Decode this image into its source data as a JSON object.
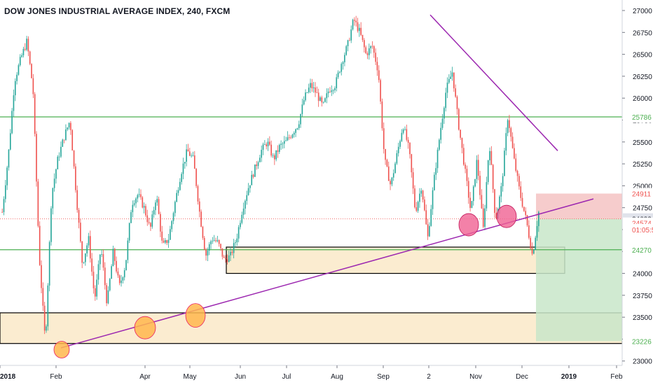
{
  "chart_data": {
    "type": "candlestick",
    "title": "DOW JONES INDUSTRIAL AVERAGE INDEX, 240, FXCM",
    "y_ticks": [
      23000,
      23250,
      23500,
      23750,
      24000,
      24250,
      24500,
      24750,
      25000,
      25250,
      25500,
      25750,
      26000,
      26250,
      26500,
      26750,
      27000
    ],
    "x_ticks": [
      "2018",
      "Feb",
      "Apr",
      "May",
      "Jun",
      "Jul",
      "Aug",
      "Sep",
      "2",
      "Nov",
      "Dec",
      "2019",
      "Feb"
    ],
    "ylim": [
      22950,
      27120
    ],
    "price_path": [
      [
        0,
        24700
      ],
      [
        1,
        25350
      ],
      [
        2,
        26200
      ],
      [
        3,
        26450
      ],
      [
        4,
        26650
      ],
      [
        5,
        26100
      ],
      [
        6,
        24200
      ],
      [
        7,
        23200
      ],
      [
        8,
        24900
      ],
      [
        9,
        25300
      ],
      [
        10,
        25550
      ],
      [
        11,
        25750
      ],
      [
        12,
        24900
      ],
      [
        13,
        24100
      ],
      [
        14,
        24400
      ],
      [
        15,
        23700
      ],
      [
        16,
        24300
      ],
      [
        17,
        23650
      ],
      [
        18,
        24250
      ],
      [
        19,
        23850
      ],
      [
        20,
        24100
      ],
      [
        21,
        24800
      ],
      [
        22,
        24900
      ],
      [
        23,
        24750
      ],
      [
        24,
        24500
      ],
      [
        25,
        24900
      ],
      [
        26,
        24300
      ],
      [
        27,
        24400
      ],
      [
        28,
        24800
      ],
      [
        29,
        25150
      ],
      [
        30,
        25400
      ],
      [
        31,
        25300
      ],
      [
        32,
        24700
      ],
      [
        33,
        24200
      ],
      [
        34,
        24400
      ],
      [
        35,
        24350
      ],
      [
        36,
        24150
      ],
      [
        37,
        24200
      ],
      [
        38,
        24400
      ],
      [
        39,
        24750
      ],
      [
        40,
        25000
      ],
      [
        41,
        25200
      ],
      [
        42,
        25400
      ],
      [
        43,
        25500
      ],
      [
        44,
        25300
      ],
      [
        45,
        25450
      ],
      [
        46,
        25500
      ],
      [
        47,
        25600
      ],
      [
        48,
        25700
      ],
      [
        49,
        26000
      ],
      [
        50,
        26150
      ],
      [
        51,
        26050
      ],
      [
        52,
        25900
      ],
      [
        53,
        26100
      ],
      [
        54,
        26150
      ],
      [
        55,
        26400
      ],
      [
        56,
        26600
      ],
      [
        57,
        26900
      ],
      [
        58,
        26750
      ],
      [
        59,
        26500
      ],
      [
        60,
        26600
      ],
      [
        61,
        26300
      ],
      [
        62,
        25300
      ],
      [
        63,
        25000
      ],
      [
        64,
        25350
      ],
      [
        65,
        25700
      ],
      [
        66,
        25400
      ],
      [
        67,
        24700
      ],
      [
        68,
        25000
      ],
      [
        69,
        24400
      ],
      [
        70,
        25050
      ],
      [
        71,
        25600
      ],
      [
        72,
        26100
      ],
      [
        73,
        26300
      ],
      [
        74,
        25700
      ],
      [
        75,
        25200
      ],
      [
        76,
        24700
      ],
      [
        77,
        25300
      ],
      [
        78,
        24500
      ],
      [
        79,
        25500
      ],
      [
        80,
        24600
      ],
      [
        81,
        25000
      ],
      [
        82,
        25800
      ],
      [
        83,
        25300
      ],
      [
        84,
        24900
      ],
      [
        85,
        24600
      ],
      [
        86,
        24200
      ],
      [
        87,
        24700
      ]
    ],
    "annotations": {
      "horizontal_lines": [
        25786,
        24270
      ],
      "supply_demand_zones": [
        {
          "from": 24000,
          "to": 24300
        },
        {
          "from": 23200,
          "to": 23550
        }
      ],
      "rising_trendline": {
        "from": [
          23150,
          "Feb"
        ],
        "to": [
          24850,
          "2019"
        ]
      },
      "falling_trendline": {
        "from": [
          26950,
          "2"
        ],
        "to": [
          25400,
          "2019"
        ]
      },
      "short_position": {
        "entry": 24622,
        "stop": 24911,
        "target": 23226
      }
    },
    "price_labels": [
      {
        "value": 25786,
        "label": "25786",
        "color": "#4caf50"
      },
      {
        "value": 24911,
        "label": "24911",
        "color": "#ef5350"
      },
      {
        "value": 24622,
        "label": "24622",
        "color": "#787b86"
      },
      {
        "value": 24574,
        "label": "24574",
        "color": "#ef5350"
      },
      {
        "value": 24500,
        "label": "01:05:5",
        "color": "#ef5350"
      },
      {
        "value": 24270,
        "label": "24270",
        "color": "#4caf50"
      },
      {
        "value": 23226,
        "label": "23226",
        "color": "#4caf50"
      }
    ],
    "colors": {
      "up": "#26a69a",
      "down": "#ef5350",
      "trendline": "#9c27b0",
      "horizontal": "#4caf50",
      "zone_fill": "#fbecd0",
      "profit_fill": "#c8e6c9",
      "loss_fill": "#f5c6c7"
    }
  }
}
